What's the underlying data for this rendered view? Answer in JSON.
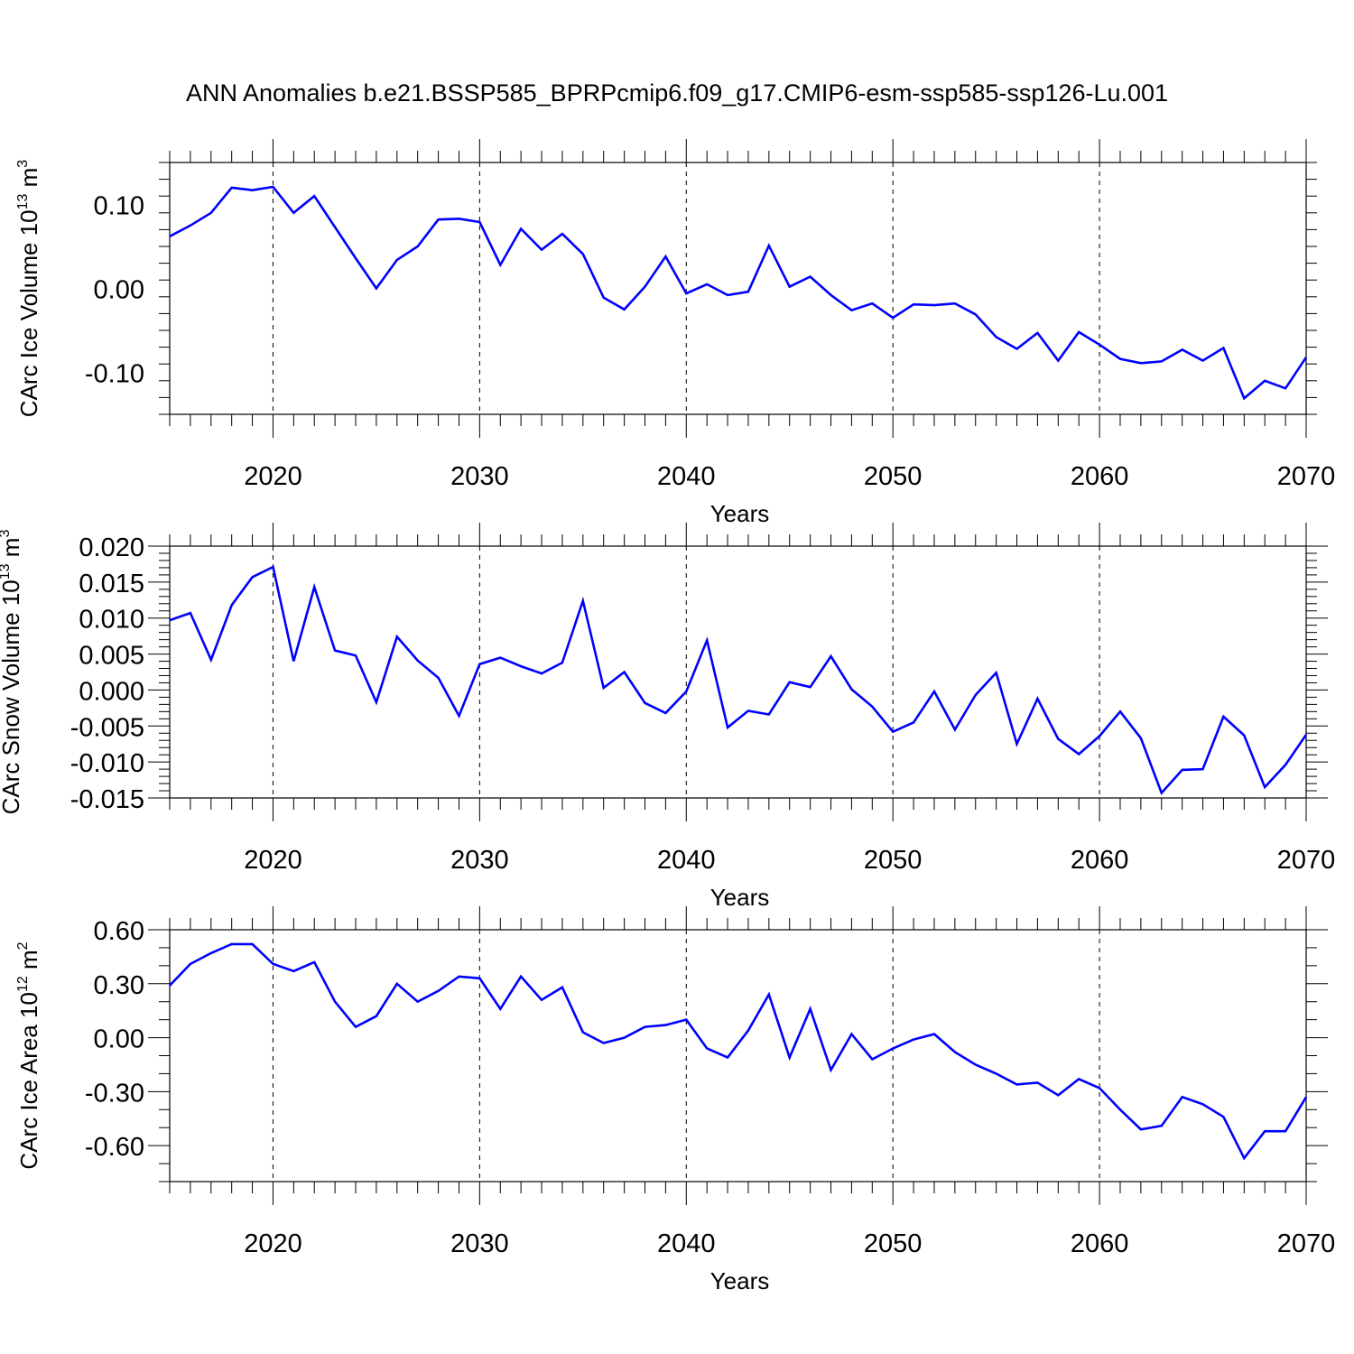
{
  "title": "ANN Anomalies b.e21.BSSP585_BPRPcmip6.f09_g17.CMIP6-esm-ssp585-ssp126-Lu.001",
  "chart_data": [
    {
      "type": "line",
      "ylabel_main": "CArc Ice Volume 10",
      "ylabel_exp": "13",
      "ylabel_unit": " m",
      "ylabel_unit_exp": "3",
      "xlabel": "Years",
      "xlim": [
        2015,
        2070
      ],
      "ylim": [
        -0.15,
        0.15
      ],
      "xticks": [
        2020,
        2030,
        2040,
        2050,
        2060,
        2070
      ],
      "xtick_labels": [
        "2020",
        "2030",
        "2040",
        "2050",
        "2060",
        "2070"
      ],
      "yticks": [
        -0.1,
        0.0,
        0.1
      ],
      "ytick_labels": [
        "-0.10",
        "0.00",
        "0.10"
      ],
      "y_minor_step": 0.02,
      "x": [
        2015,
        2016,
        2017,
        2018,
        2019,
        2020,
        2021,
        2022,
        2023,
        2024,
        2025,
        2026,
        2027,
        2028,
        2029,
        2030,
        2031,
        2032,
        2033,
        2034,
        2035,
        2036,
        2037,
        2038,
        2039,
        2040,
        2041,
        2042,
        2043,
        2044,
        2045,
        2046,
        2047,
        2048,
        2049,
        2050,
        2051,
        2052,
        2053,
        2054,
        2055,
        2056,
        2057,
        2058,
        2059,
        2060,
        2061,
        2062,
        2063,
        2064,
        2065,
        2066,
        2067,
        2068,
        2069,
        2070
      ],
      "values": [
        0.062,
        0.075,
        0.09,
        0.12,
        0.117,
        0.121,
        0.09,
        0.11,
        0.073,
        0.036,
        0.0,
        0.034,
        0.05,
        0.082,
        0.083,
        0.079,
        0.028,
        0.071,
        0.046,
        0.065,
        0.041,
        -0.011,
        -0.025,
        0.002,
        0.038,
        -0.006,
        0.005,
        -0.008,
        -0.004,
        0.051,
        0.002,
        0.014,
        -0.008,
        -0.026,
        -0.018,
        -0.035,
        -0.019,
        -0.02,
        -0.018,
        -0.031,
        -0.058,
        -0.072,
        -0.053,
        -0.086,
        -0.052,
        -0.067,
        -0.084,
        -0.089,
        -0.087,
        -0.073,
        -0.086,
        -0.071,
        -0.131,
        -0.11,
        -0.119,
        -0.082
      ],
      "color": "#0000ff",
      "grid": "dashed vertical at major ticks"
    },
    {
      "type": "line",
      "ylabel_main": "CArc Snow Volume 10",
      "ylabel_exp": "13",
      "ylabel_unit": " m",
      "ylabel_unit_exp": "3",
      "xlabel": "Years",
      "xlim": [
        2015,
        2070
      ],
      "ylim": [
        -0.015,
        0.02
      ],
      "xticks": [
        2020,
        2030,
        2040,
        2050,
        2060,
        2070
      ],
      "xtick_labels": [
        "2020",
        "2030",
        "2040",
        "2050",
        "2060",
        "2070"
      ],
      "yticks": [
        -0.015,
        -0.01,
        -0.005,
        0.0,
        0.005,
        0.01,
        0.015,
        0.02
      ],
      "ytick_labels": [
        "-0.015",
        "-0.010",
        "-0.005",
        "0.000",
        "0.005",
        "0.010",
        "0.015",
        "0.020"
      ],
      "y_minor_step": 0.001,
      "x": [
        2015,
        2016,
        2017,
        2018,
        2019,
        2020,
        2021,
        2022,
        2023,
        2024,
        2025,
        2026,
        2027,
        2028,
        2029,
        2030,
        2031,
        2032,
        2033,
        2034,
        2035,
        2036,
        2037,
        2038,
        2039,
        2040,
        2041,
        2042,
        2043,
        2044,
        2045,
        2046,
        2047,
        2048,
        2049,
        2050,
        2051,
        2052,
        2053,
        2054,
        2055,
        2056,
        2057,
        2058,
        2059,
        2060,
        2061,
        2062,
        2063,
        2064,
        2065,
        2066,
        2067,
        2068,
        2069,
        2070
      ],
      "values": [
        0.0097,
        0.0107,
        0.0042,
        0.0118,
        0.0157,
        0.0171,
        0.004,
        0.0143,
        0.0055,
        0.0048,
        -0.0017,
        0.0074,
        0.0041,
        0.0017,
        -0.0036,
        0.0036,
        0.0045,
        0.0033,
        0.0023,
        0.0038,
        0.0124,
        0.0003,
        0.0025,
        -0.0018,
        -0.0032,
        -0.0002,
        0.0069,
        -0.0052,
        -0.0029,
        -0.0034,
        0.0011,
        0.0004,
        0.0047,
        0.0001,
        -0.0023,
        -0.0058,
        -0.0045,
        -0.0002,
        -0.0055,
        -0.0007,
        0.0024,
        -0.0075,
        -0.0012,
        -0.0068,
        -0.0089,
        -0.0064,
        -0.003,
        -0.0067,
        -0.0143,
        -0.0111,
        -0.011,
        -0.0037,
        -0.0063,
        -0.0135,
        -0.0104,
        -0.0062
      ],
      "color": "#0000ff",
      "grid": "dashed vertical at major ticks"
    },
    {
      "type": "line",
      "ylabel_main": "CArc Ice Area 10",
      "ylabel_exp": "12",
      "ylabel_unit": " m",
      "ylabel_unit_exp": "2",
      "xlabel": "Years",
      "xlim": [
        2015,
        2070
      ],
      "ylim": [
        -0.8,
        0.6
      ],
      "xticks": [
        2020,
        2030,
        2040,
        2050,
        2060,
        2070
      ],
      "xtick_labels": [
        "2020",
        "2030",
        "2040",
        "2050",
        "2060",
        "2070"
      ],
      "yticks": [
        -0.6,
        -0.3,
        0.0,
        0.3,
        0.6
      ],
      "ytick_labels": [
        "-0.60",
        "-0.30",
        "0.00",
        "0.30",
        "0.60"
      ],
      "y_minor_step": 0.1,
      "x": [
        2015,
        2016,
        2017,
        2018,
        2019,
        2020,
        2021,
        2022,
        2023,
        2024,
        2025,
        2026,
        2027,
        2028,
        2029,
        2030,
        2031,
        2032,
        2033,
        2034,
        2035,
        2036,
        2037,
        2038,
        2039,
        2040,
        2041,
        2042,
        2043,
        2044,
        2045,
        2046,
        2047,
        2048,
        2049,
        2050,
        2051,
        2052,
        2053,
        2054,
        2055,
        2056,
        2057,
        2058,
        2059,
        2060,
        2061,
        2062,
        2063,
        2064,
        2065,
        2066,
        2067,
        2068,
        2069,
        2070
      ],
      "values": [
        0.29,
        0.41,
        0.47,
        0.52,
        0.52,
        0.41,
        0.37,
        0.42,
        0.2,
        0.06,
        0.12,
        0.3,
        0.2,
        0.26,
        0.34,
        0.33,
        0.16,
        0.34,
        0.21,
        0.28,
        0.03,
        -0.03,
        0.0,
        0.06,
        0.07,
        0.1,
        -0.06,
        -0.11,
        0.04,
        0.24,
        -0.11,
        0.16,
        -0.18,
        0.02,
        -0.12,
        -0.06,
        -0.01,
        0.02,
        -0.08,
        -0.15,
        -0.2,
        -0.26,
        -0.25,
        -0.32,
        -0.23,
        -0.28,
        -0.4,
        -0.51,
        -0.49,
        -0.33,
        -0.37,
        -0.44,
        -0.67,
        -0.52,
        -0.52,
        -0.33
      ],
      "color": "#0000ff",
      "grid": "dashed vertical at major ticks"
    }
  ]
}
